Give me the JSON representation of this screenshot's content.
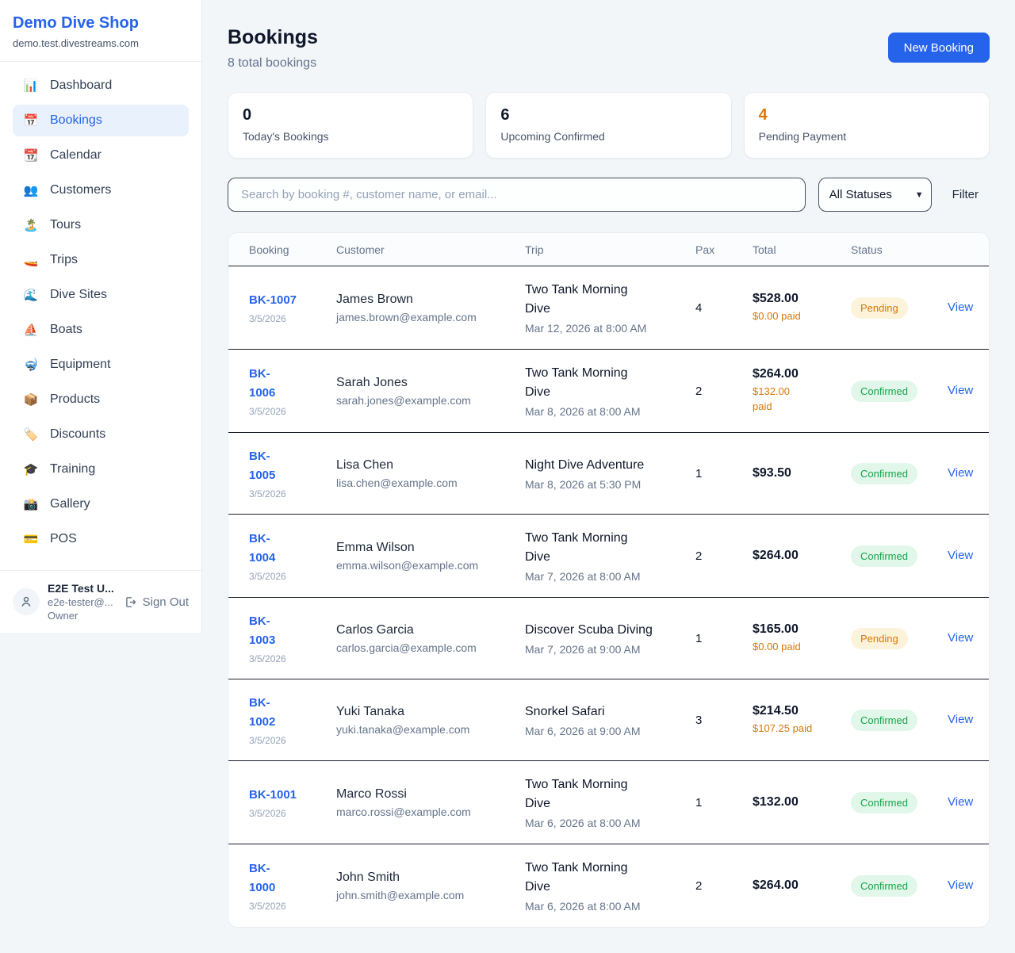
{
  "sidebar": {
    "shop_name": "Demo Dive Shop",
    "shop_domain": "demo.test.divestreams.com",
    "items": [
      {
        "label": "Dashboard",
        "icon": "bar-chart-icon",
        "glyph": "📊",
        "active": false
      },
      {
        "label": "Bookings",
        "icon": "calendar-icon",
        "glyph": "📅",
        "active": true
      },
      {
        "label": "Calendar",
        "icon": "tear-off-calendar-icon",
        "glyph": "📆",
        "active": false
      },
      {
        "label": "Customers",
        "icon": "people-icon",
        "glyph": "👥",
        "active": false
      },
      {
        "label": "Tours",
        "icon": "desert-island-icon",
        "glyph": "🏝️",
        "active": false
      },
      {
        "label": "Trips",
        "icon": "speedboat-icon",
        "glyph": "🚤",
        "active": false
      },
      {
        "label": "Dive Sites",
        "icon": "wave-icon",
        "glyph": "🌊",
        "active": false
      },
      {
        "label": "Boats",
        "icon": "sailboat-icon",
        "glyph": "⛵",
        "active": false
      },
      {
        "label": "Equipment",
        "icon": "diving-mask-icon",
        "glyph": "🤿",
        "active": false
      },
      {
        "label": "Products",
        "icon": "package-icon",
        "glyph": "📦",
        "active": false
      },
      {
        "label": "Discounts",
        "icon": "label-tag-icon",
        "glyph": "🏷️",
        "active": false
      },
      {
        "label": "Training",
        "icon": "graduation-cap-icon",
        "glyph": "🎓",
        "active": false
      },
      {
        "label": "Gallery",
        "icon": "camera-flash-icon",
        "glyph": "📸",
        "active": false
      },
      {
        "label": "POS",
        "icon": "credit-card-icon",
        "glyph": "💳",
        "active": false
      }
    ],
    "user": {
      "name": "E2E Test U...",
      "email": "e2e-tester@...",
      "role": "Owner",
      "sign_out_label": "Sign Out"
    }
  },
  "header": {
    "title": "Bookings",
    "subtitle": "8 total bookings",
    "new_booking_label": "New Booking"
  },
  "stats": [
    {
      "value": "0",
      "label": "Today's Bookings",
      "color": "#0f172a"
    },
    {
      "value": "6",
      "label": "Upcoming Confirmed",
      "color": "#0f172a"
    },
    {
      "value": "4",
      "label": "Pending Payment",
      "color": "#d97706"
    }
  ],
  "toolbar": {
    "search_placeholder": "Search by booking #, customer name, or email...",
    "status_filter_value": "All Statuses",
    "filter_label": "Filter"
  },
  "table": {
    "columns": [
      "Booking",
      "Customer",
      "Trip",
      "Pax",
      "Total",
      "Status"
    ],
    "view_label": "View",
    "status_colors": {
      "Pending": {
        "bg": "#fdf3da",
        "text": "#d97706"
      },
      "Confirmed": {
        "bg": "#e1f7e9",
        "text": "#16a34a"
      }
    },
    "rows": [
      {
        "id": "BK-1007",
        "id_wrap": false,
        "date": "3/5/2026",
        "customer": "James Brown",
        "email": "james.brown@example.com",
        "trip": "Two Tank Morning Dive",
        "trip_time": "Mar 12, 2026 at 8:00 AM",
        "pax": "4",
        "total": "$528.00",
        "paid": "$0.00 paid",
        "paid_wrap": false,
        "status": "Pending"
      },
      {
        "id": "BK-1006",
        "id_wrap": true,
        "date": "3/5/2026",
        "customer": "Sarah Jones",
        "email": "sarah.jones@example.com",
        "trip": "Two Tank Morning Dive",
        "trip_time": "Mar 8, 2026 at 8:00 AM",
        "pax": "2",
        "total": "$264.00",
        "paid": "$132.00 paid",
        "paid_wrap": true,
        "status": "Confirmed"
      },
      {
        "id": "BK-1005",
        "id_wrap": true,
        "date": "3/5/2026",
        "customer": "Lisa Chen",
        "email": "lisa.chen@example.com",
        "trip": "Night Dive Adventure",
        "trip_time": "Mar 8, 2026 at 5:30 PM",
        "pax": "1",
        "total": "$93.50",
        "paid": null,
        "paid_wrap": false,
        "status": "Confirmed"
      },
      {
        "id": "BK-1004",
        "id_wrap": true,
        "date": "3/5/2026",
        "customer": "Emma Wilson",
        "email": "emma.wilson@example.com",
        "trip": "Two Tank Morning Dive",
        "trip_time": "Mar 7, 2026 at 8:00 AM",
        "pax": "2",
        "total": "$264.00",
        "paid": null,
        "paid_wrap": false,
        "status": "Confirmed"
      },
      {
        "id": "BK-1003",
        "id_wrap": true,
        "date": "3/5/2026",
        "customer": "Carlos Garcia",
        "email": "carlos.garcia@example.com",
        "trip": "Discover Scuba Diving",
        "trip_time": "Mar 7, 2026 at 9:00 AM",
        "pax": "1",
        "total": "$165.00",
        "paid": "$0.00 paid",
        "paid_wrap": false,
        "status": "Pending"
      },
      {
        "id": "BK-1002",
        "id_wrap": true,
        "date": "3/5/2026",
        "customer": "Yuki Tanaka",
        "email": "yuki.tanaka@example.com",
        "trip": "Snorkel Safari",
        "trip_time": "Mar 6, 2026 at 9:00 AM",
        "pax": "3",
        "total": "$214.50",
        "paid": "$107.25 paid",
        "paid_wrap": false,
        "status": "Confirmed"
      },
      {
        "id": "BK-1001",
        "id_wrap": false,
        "date": "3/5/2026",
        "customer": "Marco Rossi",
        "email": "marco.rossi@example.com",
        "trip": "Two Tank Morning Dive",
        "trip_time": "Mar 6, 2026 at 8:00 AM",
        "pax": "1",
        "total": "$132.00",
        "paid": null,
        "paid_wrap": false,
        "status": "Confirmed"
      },
      {
        "id": "BK-1000",
        "id_wrap": true,
        "date": "3/5/2026",
        "customer": "John Smith",
        "email": "john.smith@example.com",
        "trip": "Two Tank Morning Dive",
        "trip_time": "Mar 6, 2026 at 8:00 AM",
        "pax": "2",
        "total": "$264.00",
        "paid": null,
        "paid_wrap": false,
        "status": "Confirmed"
      }
    ]
  }
}
